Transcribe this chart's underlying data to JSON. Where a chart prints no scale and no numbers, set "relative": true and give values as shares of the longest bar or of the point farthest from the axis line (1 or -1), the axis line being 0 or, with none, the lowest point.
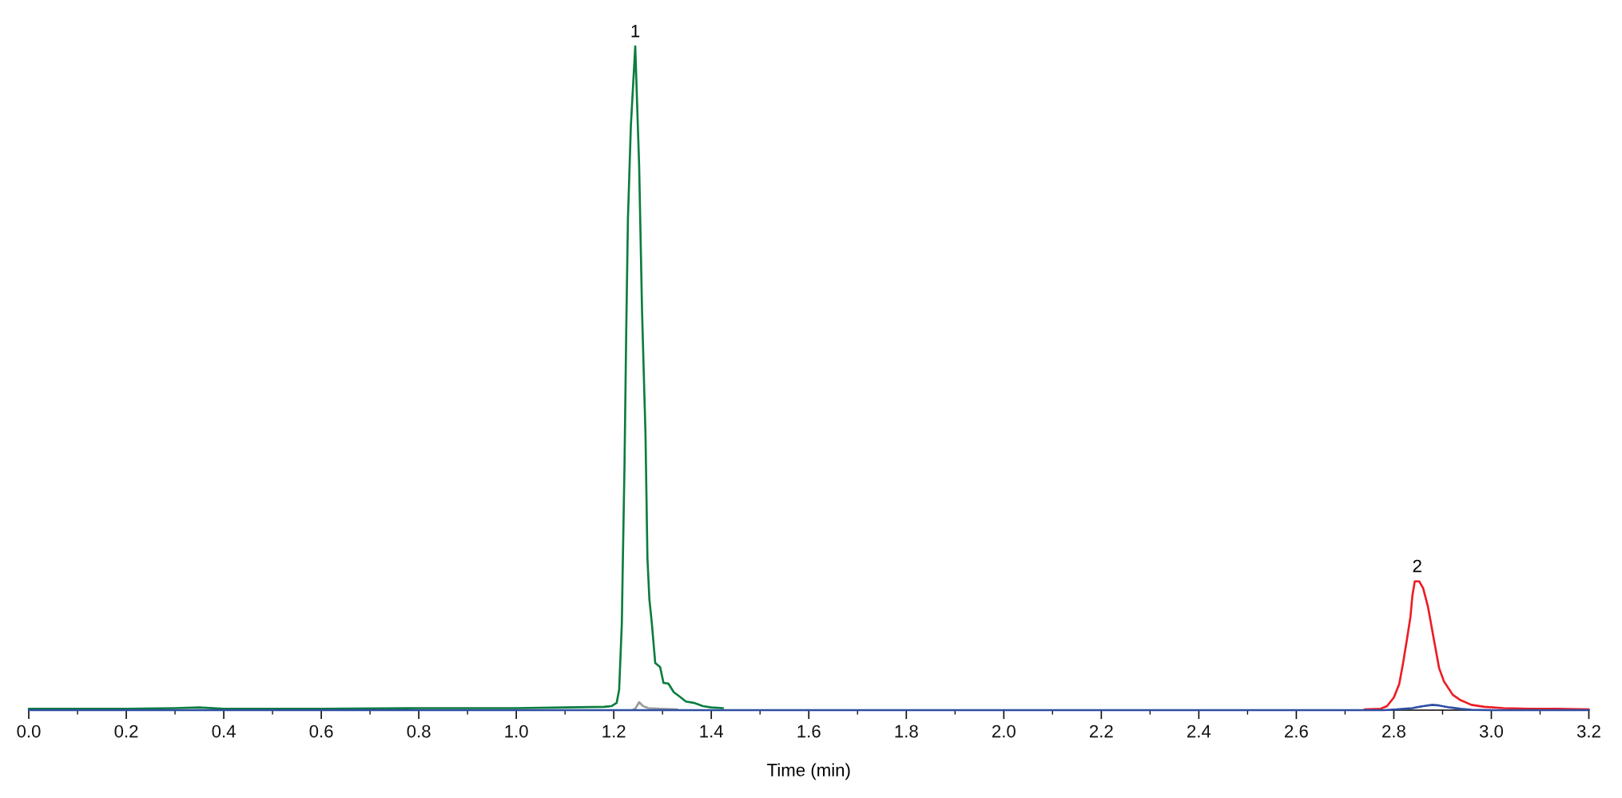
{
  "chart_data": {
    "type": "line",
    "relative": true,
    "xlabel": "Time (min)",
    "annotations": [
      {
        "text": "1",
        "x": 1.244,
        "y": 1.0
      },
      {
        "text": "2",
        "x": 2.848,
        "y": 0.194
      }
    ],
    "xlim": [
      0,
      3.2
    ],
    "xticks": [
      {
        "value": 0,
        "label": "0.0"
      },
      {
        "value": 0.1,
        "label": null
      },
      {
        "value": 0.2,
        "label": "0.2"
      },
      {
        "value": 0.3,
        "label": null
      },
      {
        "value": 0.4,
        "label": "0.4"
      },
      {
        "value": 0.5,
        "label": null
      },
      {
        "value": 0.6,
        "label": "0.6"
      },
      {
        "value": 0.7,
        "label": null
      },
      {
        "value": 0.8,
        "label": "0.8"
      },
      {
        "value": 0.9,
        "label": null
      },
      {
        "value": 1.0,
        "label": "1.0"
      },
      {
        "value": 1.1,
        "label": null
      },
      {
        "value": 1.2,
        "label": "1.2"
      },
      {
        "value": 1.3,
        "label": null
      },
      {
        "value": 1.4,
        "label": "1.4"
      },
      {
        "value": 1.5,
        "label": null
      },
      {
        "value": 1.6,
        "label": "1.6"
      },
      {
        "value": 1.7,
        "label": null
      },
      {
        "value": 1.8,
        "label": "1.8"
      },
      {
        "value": 1.9,
        "label": null
      },
      {
        "value": 2.0,
        "label": "2.0"
      },
      {
        "value": 2.1,
        "label": null
      },
      {
        "value": 2.2,
        "label": "2.2"
      },
      {
        "value": 2.3,
        "label": null
      },
      {
        "value": 2.4,
        "label": "2.4"
      },
      {
        "value": 2.5,
        "label": null
      },
      {
        "value": 2.6,
        "label": "2.6"
      },
      {
        "value": 2.7,
        "label": null
      },
      {
        "value": 2.8,
        "label": "2.8"
      },
      {
        "value": 2.9,
        "label": null
      },
      {
        "value": 3.0,
        "label": "3.0"
      },
      {
        "value": 3.1,
        "label": null
      },
      {
        "value": 3.2,
        "label": "3.2"
      }
    ],
    "series": [
      {
        "color": "#ed1c24",
        "x": [
          2.74,
          2.773,
          2.786,
          2.8,
          2.811,
          2.819,
          2.827,
          2.834,
          2.838,
          2.843,
          2.852,
          2.86,
          2.87,
          2.882,
          2.893,
          2.903,
          2.921,
          2.937,
          2.959,
          2.986,
          3.025,
          3.079,
          3.134,
          3.2
        ],
        "values": [
          0.001,
          0.002,
          0.006,
          0.019,
          0.039,
          0.071,
          0.107,
          0.14,
          0.172,
          0.194,
          0.194,
          0.184,
          0.156,
          0.107,
          0.063,
          0.043,
          0.023,
          0.015,
          0.008,
          0.005,
          0.003,
          0.002,
          0.002,
          0.001
        ]
      },
      {
        "color": "#0b7d3e",
        "x": [
          0,
          0.1,
          0.2,
          0.3,
          0.35,
          0.4,
          0.6,
          0.8,
          1.0,
          1.1,
          1.18,
          1.195,
          1.206,
          1.211,
          1.2165,
          1.218,
          1.222,
          1.2255,
          1.229,
          1.235,
          1.244,
          1.252,
          1.258,
          1.265,
          1.269,
          1.273,
          1.278,
          1.285,
          1.295,
          1.302,
          1.312,
          1.323,
          1.334,
          1.348,
          1.364,
          1.383,
          1.4,
          1.424
        ],
        "values": [
          0.002,
          0.002,
          0.002,
          0.003,
          0.004,
          0.002,
          0.002,
          0.003,
          0.003,
          0.004,
          0.005,
          0.006,
          0.011,
          0.031,
          0.131,
          0.2,
          0.37,
          0.57,
          0.74,
          0.88,
          1.0,
          0.82,
          0.6,
          0.416,
          0.229,
          0.167,
          0.131,
          0.071,
          0.065,
          0.041,
          0.04,
          0.027,
          0.021,
          0.013,
          0.011,
          0.006,
          0.004,
          0.003
        ]
      },
      {
        "color": "#9b9b9b",
        "x": [
          1.24,
          1.244,
          1.252,
          1.26,
          1.271,
          1.296,
          1.33
        ],
        "values": [
          0.001,
          0.002,
          0.012,
          0.006,
          0.003,
          0.002,
          0.001
        ]
      },
      {
        "color": "#2e4fa3",
        "x": [
          0,
          2.78,
          2.805,
          2.838,
          2.86,
          2.879,
          2.893,
          2.915,
          2.937,
          2.959,
          3.0,
          3.2
        ],
        "values": [
          0,
          0,
          0.001,
          0.003,
          0.006,
          0.008,
          0.007,
          0.004,
          0.002,
          0.0005,
          0,
          0
        ]
      }
    ]
  }
}
